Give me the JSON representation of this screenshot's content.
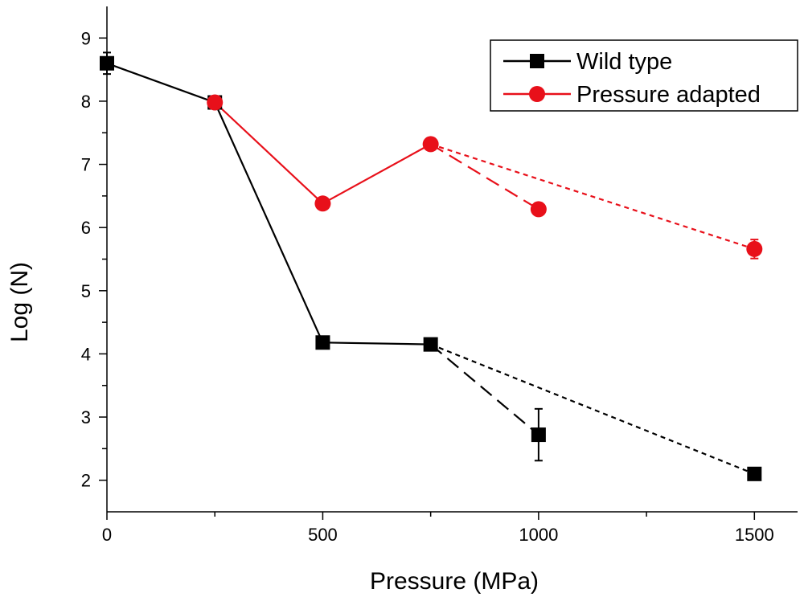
{
  "chart_data": {
    "type": "line",
    "xlabel": "Pressure (MPa)",
    "ylabel": "Log (N)",
    "xlim": [
      0,
      1600
    ],
    "ylim": [
      1.5,
      9.5
    ],
    "x_ticks": [
      0,
      500,
      1000,
      1500
    ],
    "x_minor_ticks": [
      250,
      750,
      1250
    ],
    "y_ticks": [
      2,
      3,
      4,
      5,
      6,
      7,
      8,
      9
    ],
    "legend_position": "top-right",
    "series": [
      {
        "name": "Wild type",
        "color": "#000000",
        "marker": "square",
        "x": [
          0,
          250,
          500,
          750,
          1000,
          1500
        ],
        "y": [
          8.6,
          7.98,
          4.18,
          4.15,
          2.72,
          2.1
        ],
        "err": [
          0.17,
          0.07,
          0.07,
          0.07,
          0.41,
          0.07
        ],
        "segments": [
          {
            "style": "solid",
            "x": [
              0,
              250,
              500,
              750
            ]
          },
          {
            "style": "dashed",
            "x": [
              750,
              1000
            ]
          },
          {
            "style": "dotted",
            "x": [
              750,
              1500
            ]
          }
        ]
      },
      {
        "name": "Pressure adapted",
        "color": "#e8101a",
        "marker": "circle",
        "x": [
          250,
          500,
          750,
          1000,
          1500
        ],
        "y": [
          7.98,
          6.38,
          7.32,
          6.29,
          5.66
        ],
        "err": [
          0.1,
          0.07,
          0.07,
          0.1,
          0.15
        ],
        "segments": [
          {
            "style": "solid",
            "x": [
              250,
              500,
              750
            ]
          },
          {
            "style": "dashed",
            "x": [
              750,
              1000
            ]
          },
          {
            "style": "dotted",
            "x": [
              750,
              1500
            ]
          }
        ]
      }
    ]
  }
}
